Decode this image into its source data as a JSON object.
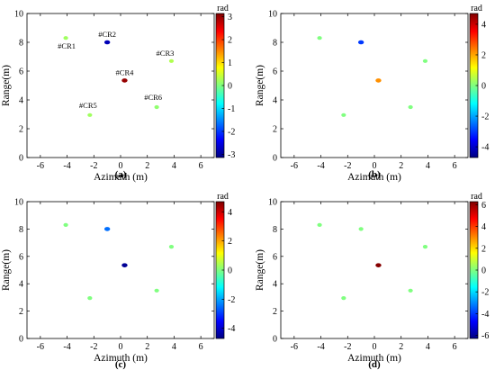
{
  "chart_data": [
    {
      "panel_label": "(a)",
      "type": "scatter",
      "xlabel": "Azimuth (m)",
      "ylabel": "Range(m)",
      "xlim": [
        -7,
        7
      ],
      "ylim": [
        0,
        10
      ],
      "xticks": [
        -6,
        -4,
        -2,
        0,
        2,
        4,
        6
      ],
      "yticks": [
        0,
        2,
        4,
        6,
        8,
        10
      ],
      "colorbar": {
        "label": "rad",
        "min": -3.14,
        "max": 3.14,
        "ticks": [
          -3,
          -2,
          -1,
          0,
          1,
          2,
          3
        ]
      },
      "points": [
        {
          "name": "#CR1",
          "x": -4.1,
          "y": 8.3,
          "value": 0.2
        },
        {
          "name": "#CR2",
          "x": -1.0,
          "y": 8.0,
          "value": -2.8
        },
        {
          "name": "#CR3",
          "x": 3.8,
          "y": 6.7,
          "value": 0.3
        },
        {
          "name": "#CR4",
          "x": 0.3,
          "y": 5.35,
          "value": 3.0
        },
        {
          "name": "#CR5",
          "x": -2.3,
          "y": 2.95,
          "value": 0.2
        },
        {
          "name": "#CR6",
          "x": 2.7,
          "y": 3.5,
          "value": 0.1
        }
      ]
    },
    {
      "panel_label": "(b)",
      "type": "scatter",
      "xlabel": "Azimuth (m)",
      "ylabel": "Range(m)",
      "xlim": [
        -7,
        7
      ],
      "ylim": [
        0,
        10
      ],
      "xticks": [
        -6,
        -4,
        -2,
        0,
        2,
        4,
        6
      ],
      "yticks": [
        0,
        2,
        4,
        6,
        8,
        10
      ],
      "colorbar": {
        "label": "rad",
        "min": -4.7,
        "max": 4.7,
        "ticks": [
          -4,
          -2,
          0,
          2,
          4
        ]
      },
      "points": [
        {
          "x": -4.1,
          "y": 8.3,
          "value": 0.0
        },
        {
          "x": -1.0,
          "y": 8.0,
          "value": -3.0
        },
        {
          "x": 3.8,
          "y": 6.7,
          "value": 0.0
        },
        {
          "x": 0.3,
          "y": 5.35,
          "value": 2.2
        },
        {
          "x": -2.3,
          "y": 2.95,
          "value": 0.0
        },
        {
          "x": 2.7,
          "y": 3.5,
          "value": 0.0
        }
      ]
    },
    {
      "panel_label": "(c)",
      "type": "scatter",
      "xlabel": "Azimuth (m)",
      "ylabel": "Range(m)",
      "xlim": [
        -7,
        7
      ],
      "ylim": [
        0,
        10
      ],
      "xticks": [
        -6,
        -4,
        -2,
        0,
        2,
        4,
        6
      ],
      "yticks": [
        0,
        2,
        4,
        6,
        8,
        10
      ],
      "colorbar": {
        "label": "rad",
        "min": -4.7,
        "max": 4.7,
        "ticks": [
          -4,
          -2,
          0,
          2,
          4
        ]
      },
      "points": [
        {
          "x": -4.1,
          "y": 8.3,
          "value": 0.0
        },
        {
          "x": -1.0,
          "y": 8.0,
          "value": -2.5
        },
        {
          "x": 3.8,
          "y": 6.7,
          "value": 0.0
        },
        {
          "x": 0.3,
          "y": 5.35,
          "value": -4.5
        },
        {
          "x": -2.3,
          "y": 2.95,
          "value": 0.0
        },
        {
          "x": 2.7,
          "y": 3.5,
          "value": 0.0
        }
      ]
    },
    {
      "panel_label": "(d)",
      "type": "scatter",
      "xlabel": "Azimuth (m)",
      "ylabel": "Range(m)",
      "xlim": [
        -7,
        7
      ],
      "ylim": [
        0,
        10
      ],
      "xticks": [
        -6,
        -4,
        -2,
        0,
        2,
        4,
        6
      ],
      "yticks": [
        0,
        2,
        4,
        6,
        8,
        10
      ],
      "colorbar": {
        "label": "rad",
        "min": -6.28,
        "max": 6.28,
        "ticks": [
          -6,
          -4,
          -2,
          0,
          2,
          4,
          6
        ]
      },
      "points": [
        {
          "x": -4.1,
          "y": 8.3,
          "value": 0.0
        },
        {
          "x": -1.0,
          "y": 8.0,
          "value": 0.0
        },
        {
          "x": 3.8,
          "y": 6.7,
          "value": 0.0
        },
        {
          "x": 0.3,
          "y": 5.35,
          "value": 6.2
        },
        {
          "x": -2.3,
          "y": 2.95,
          "value": 0.0
        },
        {
          "x": 2.7,
          "y": 3.5,
          "value": 0.0
        }
      ]
    }
  ]
}
